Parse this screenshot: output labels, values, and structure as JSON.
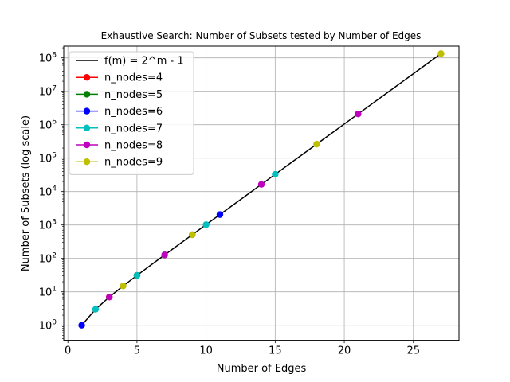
{
  "chart_data": {
    "type": "line",
    "title": "Exhaustive Search: Number of Subsets tested by Number of Edges",
    "xlabel": "Number of Edges",
    "ylabel": "Number of Subsets (log scale)",
    "yscale": "log",
    "xlim": [
      -0.3,
      28.3
    ],
    "ylim_log10": [
      -0.45,
      8.35
    ],
    "grid": true,
    "legend_position": "top-left",
    "x_ticks": [
      {
        "value": 0,
        "label": "0"
      },
      {
        "value": 5,
        "label": "5"
      },
      {
        "value": 10,
        "label": "10"
      },
      {
        "value": 15,
        "label": "15"
      },
      {
        "value": 20,
        "label": "20"
      },
      {
        "value": 25,
        "label": "25"
      }
    ],
    "y_ticks": [
      {
        "exp": 0,
        "base": "10",
        "sup": "0"
      },
      {
        "exp": 1,
        "base": "10",
        "sup": "1"
      },
      {
        "exp": 2,
        "base": "10",
        "sup": "2"
      },
      {
        "exp": 3,
        "base": "10",
        "sup": "3"
      },
      {
        "exp": 4,
        "base": "10",
        "sup": "4"
      },
      {
        "exp": 5,
        "base": "10",
        "sup": "5"
      },
      {
        "exp": 6,
        "base": "10",
        "sup": "6"
      },
      {
        "exp": 7,
        "base": "10",
        "sup": "7"
      },
      {
        "exp": 8,
        "base": "10",
        "sup": "8"
      }
    ],
    "reference_line": {
      "name": "f(m) = 2^m - 1",
      "color": "#000000",
      "x_range": [
        1,
        27
      ]
    },
    "series": [
      {
        "name": "n_nodes=4",
        "color": "#ff0000",
        "points": [
          {
            "x": 3,
            "y": 7
          },
          {
            "x": 5,
            "y": 31
          }
        ]
      },
      {
        "name": "n_nodes=5",
        "color": "#008000",
        "points": [
          {
            "x": 5,
            "y": 31
          },
          {
            "x": 7,
            "y": 127
          },
          {
            "x": 9,
            "y": 511
          }
        ]
      },
      {
        "name": "n_nodes=6",
        "color": "#0000ff",
        "points": [
          {
            "x": 1,
            "y": 1
          },
          {
            "x": 11,
            "y": 2047
          }
        ]
      },
      {
        "name": "n_nodes=7",
        "color": "#00bfbf",
        "points": [
          {
            "x": 2,
            "y": 3
          },
          {
            "x": 5,
            "y": 31
          },
          {
            "x": 10,
            "y": 1023
          },
          {
            "x": 15,
            "y": 32767
          }
        ]
      },
      {
        "name": "n_nodes=8",
        "color": "#bf00bf",
        "points": [
          {
            "x": 3,
            "y": 7
          },
          {
            "x": 7,
            "y": 127
          },
          {
            "x": 14,
            "y": 16383
          },
          {
            "x": 21,
            "y": 2097151
          }
        ]
      },
      {
        "name": "n_nodes=9",
        "color": "#bfbf00",
        "points": [
          {
            "x": 4,
            "y": 15
          },
          {
            "x": 9,
            "y": 511
          },
          {
            "x": 18,
            "y": 262143
          },
          {
            "x": 27,
            "y": 134217727
          }
        ]
      }
    ]
  }
}
